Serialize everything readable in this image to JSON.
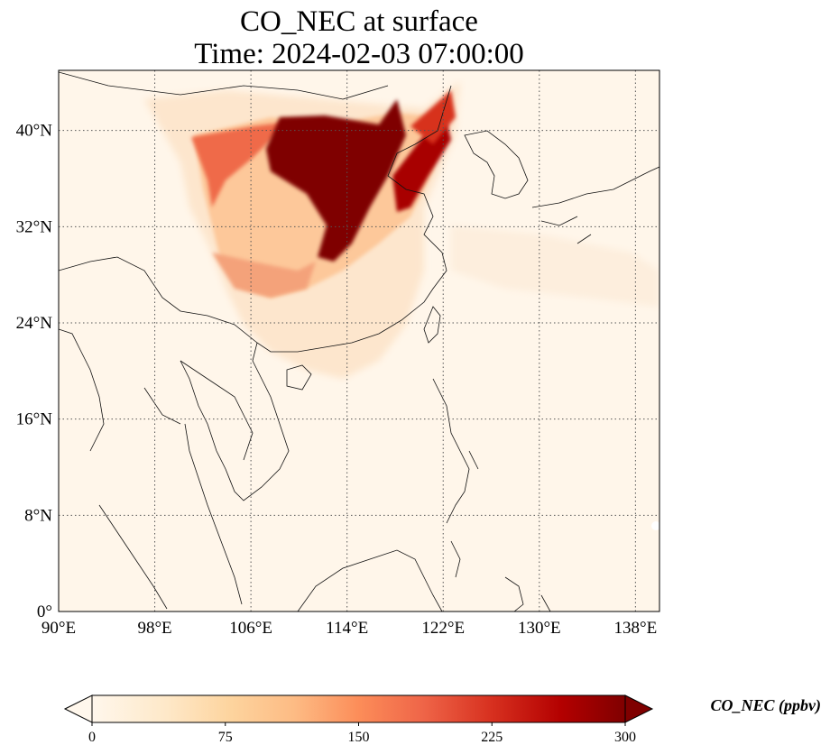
{
  "title_line1": "CO_NEC at surface",
  "title_line2": "Time: 2024-02-03 07:00:00",
  "colorbar": {
    "label": "CO_NEC (ppbv)",
    "ticks": [
      "0",
      "75",
      "150",
      "225",
      "300"
    ],
    "min": 0,
    "max": 300,
    "colormap": [
      "#fff7ec",
      "#fee8c8",
      "#fdd49e",
      "#fdbb84",
      "#fc8d59",
      "#ef6548",
      "#d7301f",
      "#b30000",
      "#7f0000"
    ]
  },
  "map": {
    "lon_range": [
      90,
      140
    ],
    "lat_range": [
      0,
      45
    ],
    "lon_ticks": [
      "90°E",
      "98°E",
      "106°E",
      "114°E",
      "122°E",
      "130°E",
      "138°E"
    ],
    "lat_ticks": [
      "0°",
      "8°N",
      "16°N",
      "24°N",
      "32°N",
      "40°N"
    ],
    "lon_tick_values": [
      90,
      98,
      106,
      114,
      122,
      130,
      138
    ],
    "lat_tick_values": [
      0,
      8,
      16,
      24,
      32,
      40
    ],
    "gridlines": "dotted"
  }
}
